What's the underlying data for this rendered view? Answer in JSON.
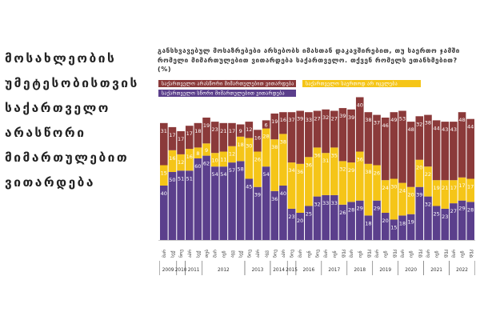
{
  "left_title": {
    "lines": [
      "მოსახლეობის",
      "უმეტესობისთვის",
      "საქართველო",
      "არასწორი",
      "მიმართულებით",
      "ვითარდება"
    ]
  },
  "question": "განსხვავებულ მოსაზრებები არსებობს იმასთან დაკავშირებით, თუ საერთო ჯამში რომელი მიმართულებით ვითარდება საქართველო. თქვენ რომელს ეთანხმებით? (%)",
  "colors": {
    "wrong": "#8B3A3A",
    "not_changing": "#F5C518",
    "right": "#5B3F8C"
  },
  "legend": [
    {
      "key": "wrong",
      "label": "საქართველო არასწორი მიმართულებით ვითარდება"
    },
    {
      "key": "not_changing",
      "label": "საქართველო საერთოდ არ იცვლება"
    },
    {
      "key": "right",
      "label": "საქართველო სწორი მიმართულებით ვითარდება"
    }
  ],
  "chart_data": {
    "type": "bar",
    "stacked": true,
    "series": [
      {
        "name": "საქართველო სწორი მიმართულებით ვითარდება",
        "values": [
          40,
          50,
          51,
          51,
          60,
          62,
          54,
          54,
          57,
          58,
          45,
          39,
          54,
          36,
          40,
          23,
          20,
          25,
          32,
          33,
          33,
          26,
          28,
          29,
          18,
          29,
          20,
          15,
          18,
          19,
          39,
          32,
          25,
          23,
          27,
          29,
          28
        ]
      },
      {
        "name": "საქართველო საერთოდ არ იცვლება",
        "values": [
          15,
          16,
          12,
          16,
          8,
          9,
          10,
          11,
          12,
          18,
          30,
          26,
          28,
          38,
          38,
          34,
          36,
          36,
          36,
          31,
          35,
          32,
          29,
          36,
          38,
          26,
          24,
          30,
          24,
          20,
          20,
          22,
          19,
          21,
          17,
          17,
          17
        ]
      },
      {
        "name": "საქართველო არასწორი მიმართულებით ვითარდება",
        "values": [
          31,
          17,
          17,
          17,
          18,
          19,
          23,
          21,
          17,
          9,
          12,
          16,
          6,
          19,
          16,
          37,
          39,
          33,
          27,
          32,
          27,
          39,
          39,
          40,
          38,
          37,
          46,
          49,
          53,
          48,
          32,
          38,
          44,
          43,
          43,
          48,
          44
        ]
      }
    ],
    "ticks": [
      "მარ",
      "სექ",
      "ნოე",
      "აპრ",
      "სექ",
      "თებ",
      "მარ",
      "ივნ",
      "აგვ",
      "სექ",
      "ნოე",
      "აპრ",
      "აგვ",
      "ნოე",
      "აპრ",
      "ნოე",
      "მარ",
      "ივნ",
      "ნოე",
      "მარ",
      "ივნ",
      "დეკ",
      "მარ",
      "ივნ",
      "დეკ",
      "მარ",
      "ივნ",
      "დეკ",
      "მარ",
      "ივნ",
      "დეკ",
      "მარ",
      "ივნ",
      "დეკ",
      "მარ",
      "ივნ",
      "დეკ"
    ],
    "year_groups": [
      {
        "label": "2009",
        "start": 0,
        "end": 1
      },
      {
        "label": "2010",
        "start": 2,
        "end": 2
      },
      {
        "label": "2011",
        "start": 3,
        "end": 4
      },
      {
        "label": "2012",
        "start": 5,
        "end": 9
      },
      {
        "label": "2013",
        "start": 10,
        "end": 12
      },
      {
        "label": "2014",
        "start": 13,
        "end": 14
      },
      {
        "label": "2015",
        "start": 15,
        "end": 15
      },
      {
        "label": "2016",
        "start": 16,
        "end": 18
      },
      {
        "label": "2017",
        "start": 19,
        "end": 21
      },
      {
        "label": "2018",
        "start": 22,
        "end": 24
      },
      {
        "label": "2019",
        "start": 25,
        "end": 27
      },
      {
        "label": "2020",
        "start": 28,
        "end": 30
      },
      {
        "label": "2021",
        "start": 31,
        "end": 33
      },
      {
        "label": "2022",
        "start": 34,
        "end": 36
      }
    ],
    "ylim": [
      0,
      100
    ],
    "grid": false,
    "legend_position": "top"
  }
}
